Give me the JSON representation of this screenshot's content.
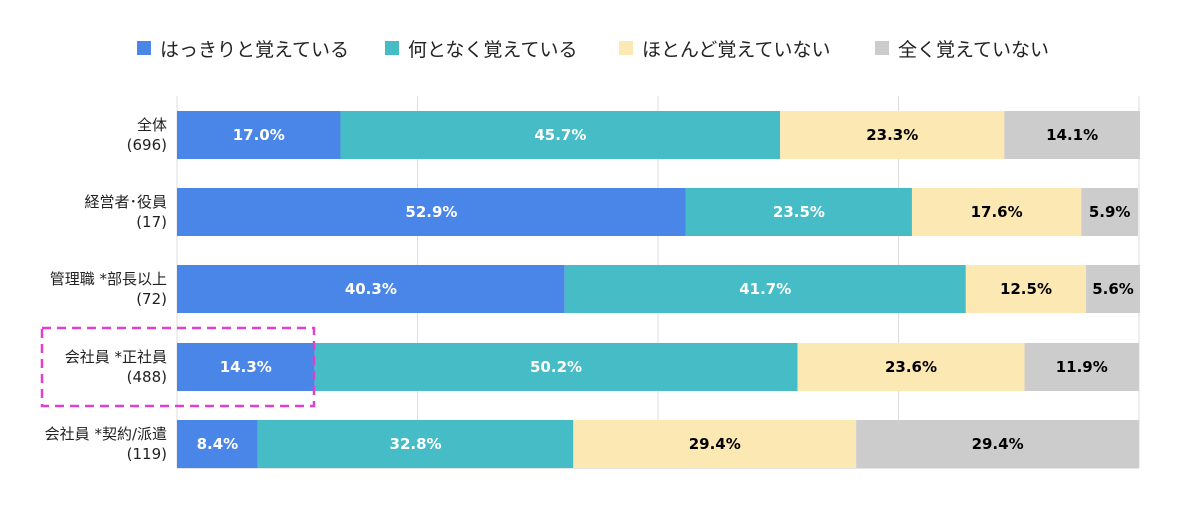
{
  "chart_data": {
    "type": "bar",
    "orientation": "horizontal",
    "stacked": "percent",
    "title": "",
    "xlabel": "",
    "ylabel": "",
    "xlim": [
      0,
      100
    ],
    "grid": true,
    "legend_position": "top",
    "categories": [
      {
        "label": "全体",
        "n": "(696)"
      },
      {
        "label": "経営者･役員",
        "n": "(17)"
      },
      {
        "label": "管理職 *部長以上",
        "n": "(72)"
      },
      {
        "label": "会社員 *正社員",
        "n": "(488)"
      },
      {
        "label": "会社員 *契約/派遣",
        "n": "(119)"
      }
    ],
    "series": [
      {
        "name": "はっきりと覚えている",
        "color": "#4a86e8",
        "label_color": "#ffffff",
        "values": [
          17.0,
          52.9,
          40.3,
          14.3,
          8.4
        ],
        "labels": [
          "17.0%",
          "52.9%",
          "40.3%",
          "14.3%",
          "8.4%"
        ]
      },
      {
        "name": "何となく覚えている",
        "color": "#46bdc6",
        "label_color": "#ffffff",
        "values": [
          45.7,
          23.5,
          41.7,
          50.2,
          32.8
        ],
        "labels": [
          "45.7%",
          "23.5%",
          "41.7%",
          "50.2%",
          "32.8%"
        ]
      },
      {
        "name": "ほとんど覚えていない",
        "color": "#fce8b2",
        "label_color": "#000000",
        "values": [
          23.3,
          17.6,
          12.5,
          23.6,
          29.4
        ],
        "labels": [
          "23.3%",
          "17.6%",
          "12.5%",
          "23.6%",
          "29.4%"
        ]
      },
      {
        "name": "全く覚えていない",
        "color": "#cccccc",
        "label_color": "#000000",
        "values": [
          14.1,
          5.9,
          5.6,
          11.9,
          29.4
        ],
        "labels": [
          "14.1%",
          "5.9%",
          "5.6%",
          "11.9%",
          "29.4%"
        ]
      }
    ],
    "highlight": {
      "category_index": 3,
      "style": "dashed-magenta-box",
      "color": "#e040d0"
    }
  }
}
